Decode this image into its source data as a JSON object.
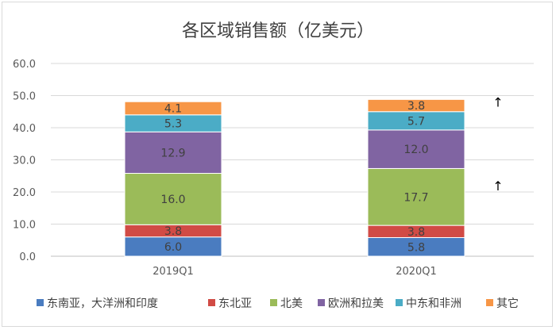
{
  "chart_data": {
    "type": "bar",
    "stacked": true,
    "title": "各区域销售额（亿美元）",
    "categories": [
      "2019Q1",
      "2020Q1"
    ],
    "ylim": [
      0,
      60
    ],
    "yticks": [
      "0.0",
      "10.0",
      "20.0",
      "30.0",
      "40.0",
      "50.0",
      "60.0"
    ],
    "grid": true,
    "legend_position": "bottom",
    "series": [
      {
        "name": "东南亚，大洋洲和印度",
        "color": "#4a7cc0",
        "values": [
          6.0,
          5.8
        ],
        "labels": [
          "6.0",
          "5.8"
        ]
      },
      {
        "name": "东北亚",
        "color": "#d14b45",
        "values": [
          3.8,
          3.8
        ],
        "labels": [
          "3.8",
          "3.8"
        ]
      },
      {
        "name": "北美",
        "color": "#9bbb59",
        "values": [
          16.0,
          17.7
        ],
        "labels": [
          "16.0",
          "17.7"
        ]
      },
      {
        "name": "欧洲和拉美",
        "color": "#8064a2",
        "values": [
          12.9,
          12.0
        ],
        "labels": [
          "12.9",
          "12.0"
        ]
      },
      {
        "name": "中东和非洲",
        "color": "#4bacc6",
        "values": [
          5.3,
          5.7
        ],
        "labels": [
          "5.3",
          "5.7"
        ]
      },
      {
        "name": "其它",
        "color": "#f79646",
        "values": [
          4.1,
          3.8
        ],
        "labels": [
          "4.1",
          "3.8"
        ]
      }
    ],
    "annotations": [
      {
        "text": "↑",
        "category": "2020Q1",
        "y": 48.0
      },
      {
        "text": "↑",
        "category": "2020Q1",
        "y": 22.0
      }
    ]
  }
}
